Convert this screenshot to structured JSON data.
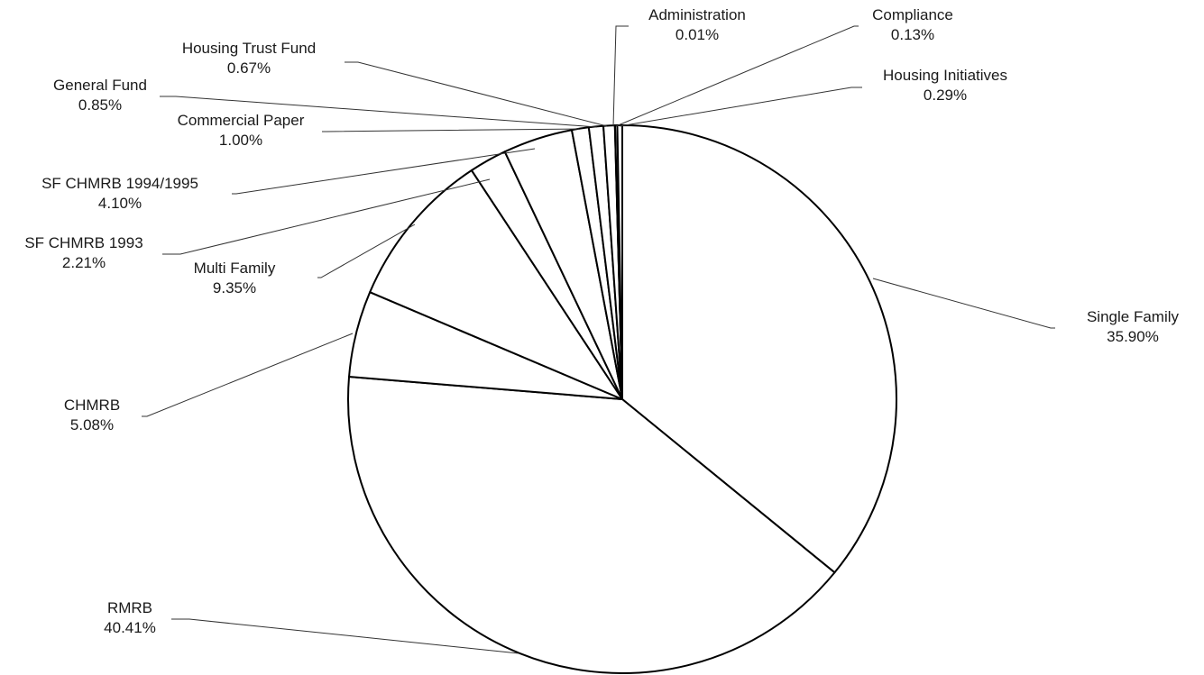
{
  "chart_data": {
    "type": "pie",
    "title": "",
    "start_angle_deg": 0,
    "direction": "clockwise",
    "slices": [
      {
        "label": "Single Family",
        "value": 35.9,
        "display": "35.90%"
      },
      {
        "label": "RMRB",
        "value": 40.41,
        "display": "40.41%"
      },
      {
        "label": "CHMRB",
        "value": 5.08,
        "display": "5.08%"
      },
      {
        "label": "Multi Family",
        "value": 9.35,
        "display": "9.35%"
      },
      {
        "label": "SF CHMRB 1993",
        "value": 2.21,
        "display": "2.21%"
      },
      {
        "label": "SF CHMRB 1994/1995",
        "value": 4.1,
        "display": "4.10%"
      },
      {
        "label": "Commercial Paper",
        "value": 1.0,
        "display": "1.00%"
      },
      {
        "label": "General Fund",
        "value": 0.85,
        "display": "0.85%"
      },
      {
        "label": "Housing Trust Fund",
        "value": 0.67,
        "display": "0.67%"
      },
      {
        "label": "Administration",
        "value": 0.01,
        "display": "0.01%"
      },
      {
        "label": "Compliance",
        "value": 0.13,
        "display": "0.13%"
      },
      {
        "label": "Housing Initiatives",
        "value": 0.29,
        "display": "0.29%"
      }
    ],
    "colors": {
      "fill": "#ffffff",
      "stroke": "#000000",
      "leader": "#333333",
      "text": "#1a1a1a"
    },
    "legend": "none",
    "labels": "outside-with-leader-lines"
  }
}
